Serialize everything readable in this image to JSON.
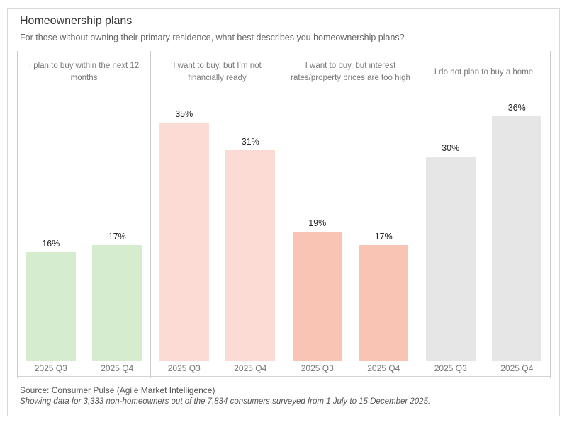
{
  "chart_data": {
    "type": "bar",
    "title": "Homeownership plans",
    "subtitle": "For those without owning their primary residence, what best describes you homeownership plans?",
    "categories": [
      "2025 Q3",
      "2025 Q4"
    ],
    "panels": [
      {
        "label": "I plan to buy within the next 12 months",
        "color": "#d5ecce",
        "values": [
          16,
          17
        ]
      },
      {
        "label": "I want to buy, but I’m not financially ready",
        "color": "#fcdbd4",
        "values": [
          35,
          31
        ]
      },
      {
        "label": "I want to buy, but interest rates/property prices are too high",
        "color": "#fac4b4",
        "values": [
          19,
          17
        ]
      },
      {
        "label": "I do not plan to buy a home",
        "color": "#e6e6e6",
        "values": [
          30,
          36
        ]
      }
    ],
    "value_suffix": "%",
    "ylim": [
      0,
      39.3
    ],
    "grid": false,
    "legend": false
  },
  "footer": {
    "source": "Source: Consumer Pulse (Agile Market Intelligence)",
    "note": "Showing data for 3,333 non-homeowners out of the 7,834 consumers surveyed from 1 July to 15 December 2025."
  }
}
